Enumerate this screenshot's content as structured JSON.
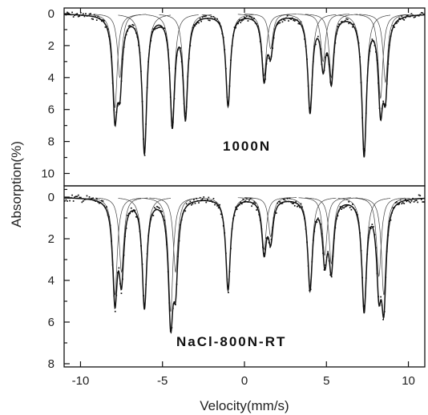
{
  "chart_data": {
    "type": "line",
    "xlabel": "Velocity(mm/s)",
    "ylabel": "Absorption(%)",
    "xlim": [
      -11,
      11
    ],
    "x_ticks": [
      "-10",
      "-5",
      "0",
      "5",
      "10"
    ],
    "panels": [
      {
        "label": "1000N",
        "ylim": [
          0,
          11
        ],
        "y_ticks": [
          "0",
          "2",
          "4",
          "6",
          "8",
          "10"
        ],
        "peaks": [
          {
            "x": -7.9,
            "depth": 5.9
          },
          {
            "x": -7.6,
            "depth": 4.0
          },
          {
            "x": -6.1,
            "depth": 8.6
          },
          {
            "x": -4.4,
            "depth": 6.8
          },
          {
            "x": -3.6,
            "depth": 6.3
          },
          {
            "x": -1.0,
            "depth": 5.7
          },
          {
            "x": 1.2,
            "depth": 3.9
          },
          {
            "x": 1.6,
            "depth": 2.2
          },
          {
            "x": 4.0,
            "depth": 6.0
          },
          {
            "x": 4.8,
            "depth": 3.0
          },
          {
            "x": 5.3,
            "depth": 4.0
          },
          {
            "x": 7.3,
            "depth": 8.7
          },
          {
            "x": 8.3,
            "depth": 5.3
          },
          {
            "x": 8.6,
            "depth": 4.3
          }
        ]
      },
      {
        "label": "NaCl-800N-RT",
        "ylim": [
          0,
          8
        ],
        "y_ticks": [
          "0",
          "2",
          "4",
          "6",
          "8"
        ],
        "peaks": [
          {
            "x": -7.9,
            "depth": 4.7
          },
          {
            "x": -7.5,
            "depth": 3.6
          },
          {
            "x": -6.1,
            "depth": 5.2
          },
          {
            "x": -4.5,
            "depth": 5.5
          },
          {
            "x": -4.2,
            "depth": 3.6
          },
          {
            "x": -1.0,
            "depth": 4.4
          },
          {
            "x": 1.2,
            "depth": 2.5
          },
          {
            "x": 1.6,
            "depth": 1.9
          },
          {
            "x": 4.0,
            "depth": 4.3
          },
          {
            "x": 4.9,
            "depth": 2.8
          },
          {
            "x": 5.3,
            "depth": 3.2
          },
          {
            "x": 7.3,
            "depth": 5.3
          },
          {
            "x": 8.2,
            "depth": 3.8
          },
          {
            "x": 8.5,
            "depth": 4.7
          }
        ]
      }
    ]
  }
}
